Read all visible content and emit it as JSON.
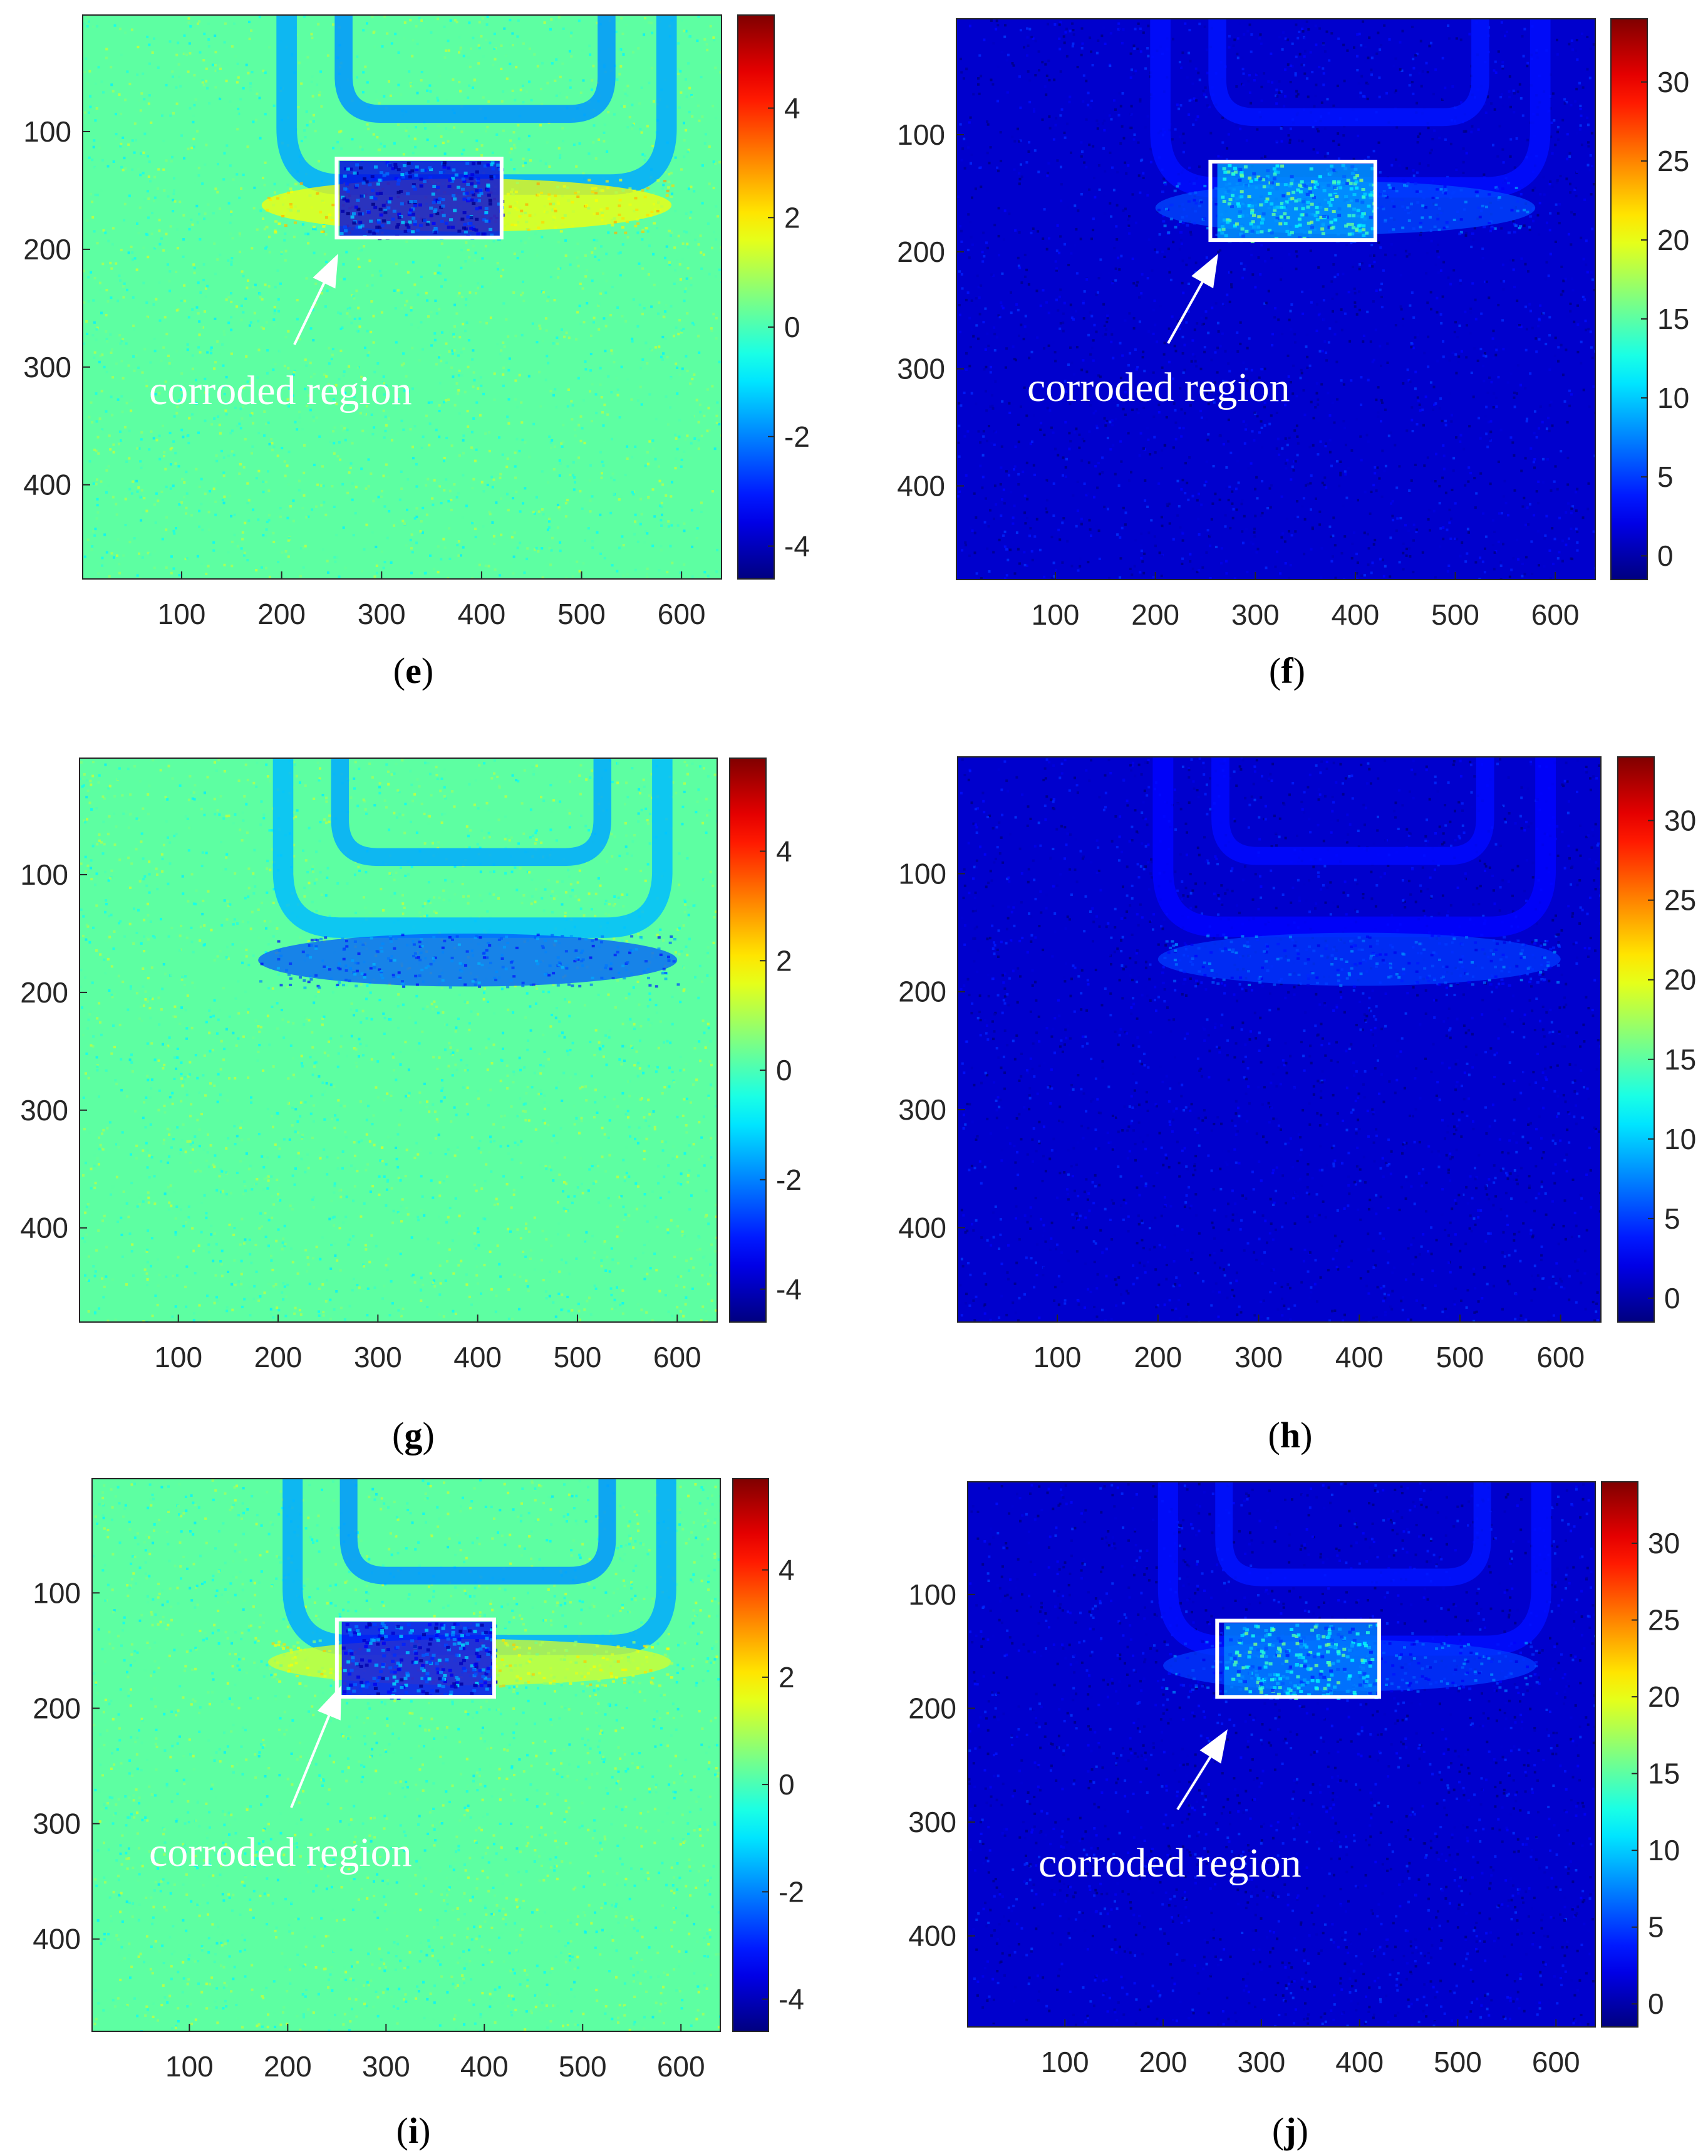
{
  "chart_data": [
    {
      "panel": "e",
      "type": "heatmap",
      "caption_letter": "e",
      "title": "",
      "xlabel": "",
      "ylabel": "",
      "xlim": [
        1,
        640
      ],
      "ylim": [
        1,
        480
      ],
      "x_ticks": [
        100,
        200,
        300,
        400,
        500,
        600
      ],
      "y_ticks": [
        100,
        200,
        300,
        400
      ],
      "colorbar": {
        "min": -4.6,
        "max": 5.7,
        "ticks": [
          -4,
          -2,
          0,
          2,
          4
        ],
        "colormap": "jet"
      },
      "background_value": 0.2,
      "features": [
        {
          "kind": "frame-outer",
          "value": -1.6
        },
        {
          "kind": "frame-inner",
          "value": -1.8
        },
        {
          "kind": "band",
          "x": [
            180,
            590
          ],
          "y": [
            140,
            185
          ],
          "value": 1.8
        },
        {
          "kind": "core",
          "x": [
            258,
            420
          ],
          "y": [
            125,
            190
          ],
          "value": -3.6
        }
      ],
      "annotation": {
        "text": "corroded region",
        "box": {
          "x": [
            255,
            420
          ],
          "y": [
            123,
            190
          ]
        }
      }
    },
    {
      "panel": "f",
      "type": "heatmap",
      "caption_letter": "f",
      "title": "",
      "xlabel": "",
      "ylabel": "",
      "xlim": [
        1,
        640
      ],
      "ylim": [
        1,
        480
      ],
      "x_ticks": [
        100,
        200,
        300,
        400,
        500,
        600
      ],
      "y_ticks": [
        100,
        200,
        300,
        400
      ],
      "colorbar": {
        "min": -1.5,
        "max": 34,
        "ticks": [
          0,
          5,
          10,
          15,
          20,
          25,
          30
        ],
        "colormap": "jet"
      },
      "background_value": 1.2,
      "features": [
        {
          "kind": "frame-outer",
          "value": 3.4
        },
        {
          "kind": "frame-inner",
          "value": 3.6
        },
        {
          "kind": "band",
          "x": [
            200,
            580
          ],
          "y": [
            140,
            185
          ],
          "value": 5.5
        },
        {
          "kind": "core",
          "x": [
            262,
            418
          ],
          "y": [
            125,
            190
          ],
          "value": 8.5
        }
      ],
      "annotation": {
        "text": "corroded region",
        "box": {
          "x": [
            255,
            420
          ],
          "y": [
            123,
            190
          ]
        }
      }
    },
    {
      "panel": "g",
      "type": "heatmap",
      "caption_letter": "g",
      "title": "",
      "xlabel": "",
      "ylabel": "",
      "xlim": [
        1,
        640
      ],
      "ylim": [
        1,
        480
      ],
      "x_ticks": [
        100,
        200,
        300,
        400,
        500,
        600
      ],
      "y_ticks": [
        100,
        200,
        300,
        400
      ],
      "colorbar": {
        "min": -4.6,
        "max": 5.7,
        "ticks": [
          -4,
          -2,
          0,
          2,
          4
        ],
        "colormap": "jet"
      },
      "background_value": 0.2,
      "features": [
        {
          "kind": "frame-outer",
          "value": -1.4
        },
        {
          "kind": "frame-inner",
          "value": -1.6
        },
        {
          "kind": "band",
          "x": [
            180,
            600
          ],
          "y": [
            150,
            195
          ],
          "value": -2.4
        }
      ],
      "annotation": null
    },
    {
      "panel": "h",
      "type": "heatmap",
      "caption_letter": "h",
      "title": "",
      "xlabel": "",
      "ylabel": "",
      "xlim": [
        1,
        640
      ],
      "ylim": [
        1,
        480
      ],
      "x_ticks": [
        100,
        200,
        300,
        400,
        500,
        600
      ],
      "y_ticks": [
        100,
        200,
        300,
        400
      ],
      "colorbar": {
        "min": -1.5,
        "max": 34,
        "ticks": [
          0,
          5,
          10,
          15,
          20,
          25,
          30
        ],
        "colormap": "jet"
      },
      "background_value": 1.2,
      "features": [
        {
          "kind": "frame-outer",
          "value": 3.0
        },
        {
          "kind": "frame-inner",
          "value": 3.2
        },
        {
          "kind": "band",
          "x": [
            200,
            600
          ],
          "y": [
            150,
            195
          ],
          "value": 5.0
        }
      ],
      "annotation": null
    },
    {
      "panel": "i",
      "type": "heatmap",
      "caption_letter": "i",
      "title": "",
      "xlabel": "",
      "ylabel": "",
      "xlim": [
        1,
        640
      ],
      "ylim": [
        1,
        480
      ],
      "x_ticks": [
        100,
        200,
        300,
        400,
        500,
        600
      ],
      "y_ticks": [
        100,
        200,
        300,
        400
      ],
      "colorbar": {
        "min": -4.6,
        "max": 5.7,
        "ticks": [
          -4,
          -2,
          0,
          2,
          4
        ],
        "colormap": "jet"
      },
      "background_value": 0.2,
      "features": [
        {
          "kind": "frame-outer",
          "value": -1.6
        },
        {
          "kind": "frame-inner",
          "value": -1.8
        },
        {
          "kind": "band",
          "x": [
            180,
            590
          ],
          "y": [
            140,
            180
          ],
          "value": 1.4
        },
        {
          "kind": "core",
          "x": [
            255,
            410
          ],
          "y": [
            125,
            190
          ],
          "value": -3.4
        }
      ],
      "annotation": {
        "text": "corroded region",
        "box": {
          "x": [
            250,
            410
          ],
          "y": [
            123,
            190
          ]
        }
      }
    },
    {
      "panel": "j",
      "type": "heatmap",
      "caption_letter": "j",
      "title": "",
      "xlabel": "",
      "ylabel": "",
      "xlim": [
        1,
        640
      ],
      "ylim": [
        1,
        480
      ],
      "x_ticks": [
        100,
        200,
        300,
        400,
        500,
        600
      ],
      "y_ticks": [
        100,
        200,
        300,
        400
      ],
      "colorbar": {
        "min": -1.5,
        "max": 34,
        "ticks": [
          0,
          5,
          10,
          15,
          20,
          25,
          30
        ],
        "colormap": "jet"
      },
      "background_value": 1.2,
      "features": [
        {
          "kind": "frame-outer",
          "value": 3.4
        },
        {
          "kind": "frame-inner",
          "value": 3.6
        },
        {
          "kind": "band",
          "x": [
            200,
            580
          ],
          "y": [
            140,
            185
          ],
          "value": 5.0
        },
        {
          "kind": "core",
          "x": [
            262,
            418
          ],
          "y": [
            125,
            190
          ],
          "value": 7.5
        }
      ],
      "annotation": {
        "text": "corroded region",
        "box": {
          "x": [
            255,
            420
          ],
          "y": [
            123,
            190
          ]
        }
      }
    }
  ]
}
